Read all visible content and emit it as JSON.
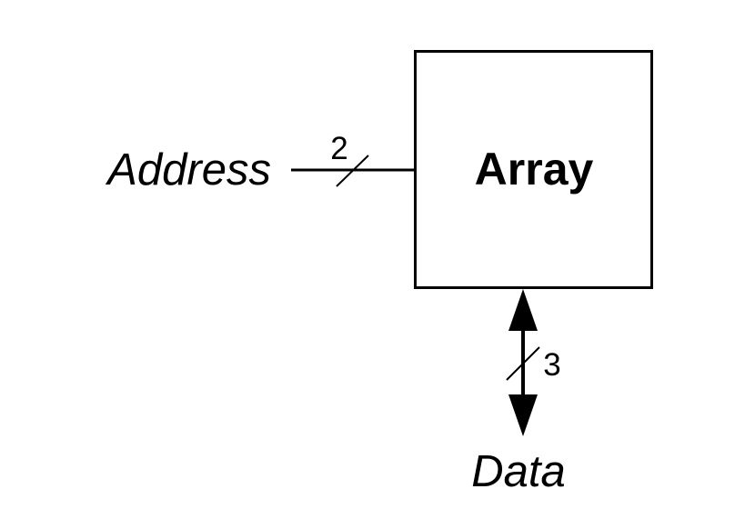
{
  "block": {
    "label": "Array"
  },
  "address": {
    "label": "Address",
    "bus_width": "2"
  },
  "data": {
    "label": "Data",
    "bus_width": "3"
  },
  "colors": {
    "stroke": "#000000",
    "background": "#ffffff"
  }
}
